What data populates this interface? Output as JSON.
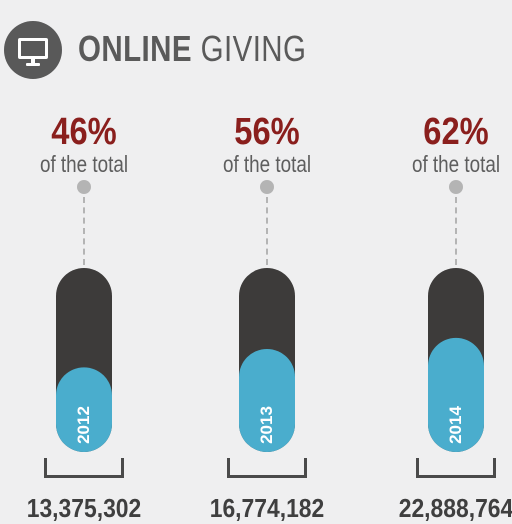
{
  "header": {
    "title_bold": "ONLINE",
    "title_light": "GIVING",
    "icon": "monitor-icon"
  },
  "colors": {
    "background": "#efeff0",
    "bar_empty": "#3d3b3a",
    "bar_fill": "#4aadcd",
    "percent_text": "#8a1f1d",
    "badge": "#595959"
  },
  "chart_data": {
    "type": "bar",
    "categories": [
      "2012",
      "2013",
      "2014"
    ],
    "values": [
      46,
      56,
      62
    ],
    "percent_labels": [
      "46%",
      "56%",
      "62%"
    ],
    "sublabel": "of the total",
    "totals": [
      "13,375,302",
      "16,774,182",
      "22,888,764"
    ],
    "ylim": [
      0,
      100
    ]
  }
}
